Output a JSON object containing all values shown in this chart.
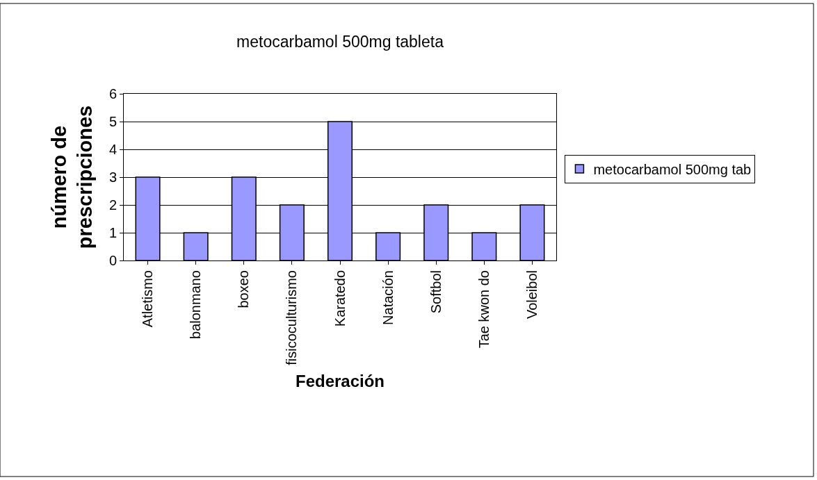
{
  "chart_data": {
    "type": "bar",
    "title": "metocarbamol 500mg tableta",
    "xlabel": "Federación",
    "ylabel": "número de\nprescripciones",
    "categories": [
      "Atletismo",
      "balonmano",
      "boxeo",
      "fisicoculturismo",
      "Karatedo",
      "Natación",
      "Softbol",
      "Tae kwon do",
      "Voleibol"
    ],
    "series": [
      {
        "name": "metocarbamol 500mg tab",
        "color": "#9999ff",
        "values": [
          3,
          1,
          3,
          2,
          5,
          1,
          2,
          1,
          2
        ]
      }
    ],
    "ylim": [
      0,
      6
    ],
    "yticks": [
      0,
      1,
      2,
      3,
      4,
      5,
      6
    ],
    "grid": "y",
    "legend": "right"
  }
}
